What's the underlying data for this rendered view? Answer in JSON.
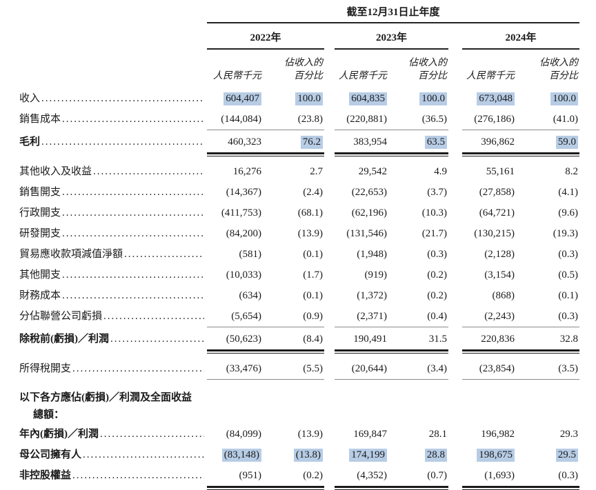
{
  "table": {
    "period_header": "截至12月31日止年度",
    "years": [
      "2022年",
      "2023年",
      "2024年"
    ],
    "amount_header": "人民幣千元",
    "pct_header_line1": "佔收入的",
    "pct_header_line2": "百分比",
    "highlight_color": "#b7cce5",
    "rows": [
      {
        "label": "收入",
        "bold": false,
        "rule": "none",
        "values": [
          "604,407",
          "100.0",
          "604,835",
          "100.0",
          "673,048",
          "100.0"
        ],
        "highlights": [
          true,
          true,
          true,
          true,
          true,
          true
        ]
      },
      {
        "label": "銷售成本",
        "bold": false,
        "rule": "single",
        "values": [
          "(144,084)",
          "(23.8)",
          "(220,881)",
          "(36.5)",
          "(276,186)",
          "(41.0)"
        ],
        "highlights": [
          false,
          false,
          false,
          false,
          false,
          false
        ]
      },
      {
        "label": "毛利",
        "bold": true,
        "rule": "double",
        "values": [
          "460,323",
          "76.2",
          "383,954",
          "63.5",
          "396,862",
          "59.0"
        ],
        "highlights": [
          false,
          true,
          false,
          true,
          false,
          true
        ]
      },
      {
        "label": "其他收入及收益",
        "bold": false,
        "rule": "none",
        "values": [
          "16,276",
          "2.7",
          "29,542",
          "4.9",
          "55,161",
          "8.2"
        ],
        "highlights": [
          false,
          false,
          false,
          false,
          false,
          false
        ]
      },
      {
        "label": "銷售開支",
        "bold": false,
        "rule": "none",
        "values": [
          "(14,367)",
          "(2.4)",
          "(22,653)",
          "(3.7)",
          "(27,858)",
          "(4.1)"
        ],
        "highlights": [
          false,
          false,
          false,
          false,
          false,
          false
        ]
      },
      {
        "label": "行政開支",
        "bold": false,
        "rule": "none",
        "values": [
          "(411,753)",
          "(68.1)",
          "(62,196)",
          "(10.3)",
          "(64,721)",
          "(9.6)"
        ],
        "highlights": [
          false,
          false,
          false,
          false,
          false,
          false
        ]
      },
      {
        "label": "研發開支",
        "bold": false,
        "rule": "none",
        "values": [
          "(84,200)",
          "(13.9)",
          "(131,546)",
          "(21.7)",
          "(130,215)",
          "(19.3)"
        ],
        "highlights": [
          false,
          false,
          false,
          false,
          false,
          false
        ]
      },
      {
        "label": "貿易應收款項減值淨額",
        "bold": false,
        "rule": "none",
        "values": [
          "(581)",
          "(0.1)",
          "(1,948)",
          "(0.3)",
          "(2,128)",
          "(0.3)"
        ],
        "highlights": [
          false,
          false,
          false,
          false,
          false,
          false
        ]
      },
      {
        "label": "其他開支",
        "bold": false,
        "rule": "none",
        "values": [
          "(10,033)",
          "(1.7)",
          "(919)",
          "(0.2)",
          "(3,154)",
          "(0.5)"
        ],
        "highlights": [
          false,
          false,
          false,
          false,
          false,
          false
        ]
      },
      {
        "label": "財務成本",
        "bold": false,
        "rule": "none",
        "values": [
          "(634)",
          "(0.1)",
          "(1,372)",
          "(0.2)",
          "(868)",
          "(0.1)"
        ],
        "highlights": [
          false,
          false,
          false,
          false,
          false,
          false
        ]
      },
      {
        "label": "分佔聯營公司虧損",
        "bold": false,
        "rule": "single",
        "values": [
          "(5,654)",
          "(0.9)",
          "(2,371)",
          "(0.4)",
          "(2,243)",
          "(0.3)"
        ],
        "highlights": [
          false,
          false,
          false,
          false,
          false,
          false
        ]
      },
      {
        "label": "除稅前(虧損)／利潤",
        "bold": true,
        "rule": "double",
        "values": [
          "(50,623)",
          "(8.4)",
          "190,491",
          "31.5",
          "220,836",
          "32.8"
        ],
        "highlights": [
          false,
          false,
          false,
          false,
          false,
          false
        ]
      },
      {
        "label": "所得稅開支",
        "bold": false,
        "rule": "single",
        "gap_after": true,
        "values": [
          "(33,476)",
          "(5.5)",
          "(20,644)",
          "(3.4)",
          "(23,854)",
          "(3.5)"
        ],
        "highlights": [
          false,
          false,
          false,
          false,
          false,
          false
        ]
      },
      {
        "heading": true,
        "label_line1": "以下各方應佔(虧損)／利潤及全面收益",
        "label_line2": "總額："
      },
      {
        "label": "年內(虧損)／利潤",
        "bold": true,
        "rule": "none",
        "values": [
          "(84,099)",
          "(13.9)",
          "169,847",
          "28.1",
          "196,982",
          "29.3"
        ],
        "highlights": [
          false,
          false,
          false,
          false,
          false,
          false
        ]
      },
      {
        "label": "母公司擁有人",
        "bold": true,
        "rule": "none",
        "values": [
          "(83,148)",
          "(13.8)",
          "174,199",
          "28.8",
          "198,675",
          "29.5"
        ],
        "highlights": [
          true,
          true,
          true,
          true,
          true,
          true
        ]
      },
      {
        "label": "非控股權益",
        "bold": true,
        "rule": "double",
        "values": [
          "(951)",
          "(0.2)",
          "(4,352)",
          "(0.7)",
          "(1,693)",
          "(0.3)"
        ],
        "highlights": [
          false,
          false,
          false,
          false,
          false,
          false
        ]
      }
    ]
  }
}
